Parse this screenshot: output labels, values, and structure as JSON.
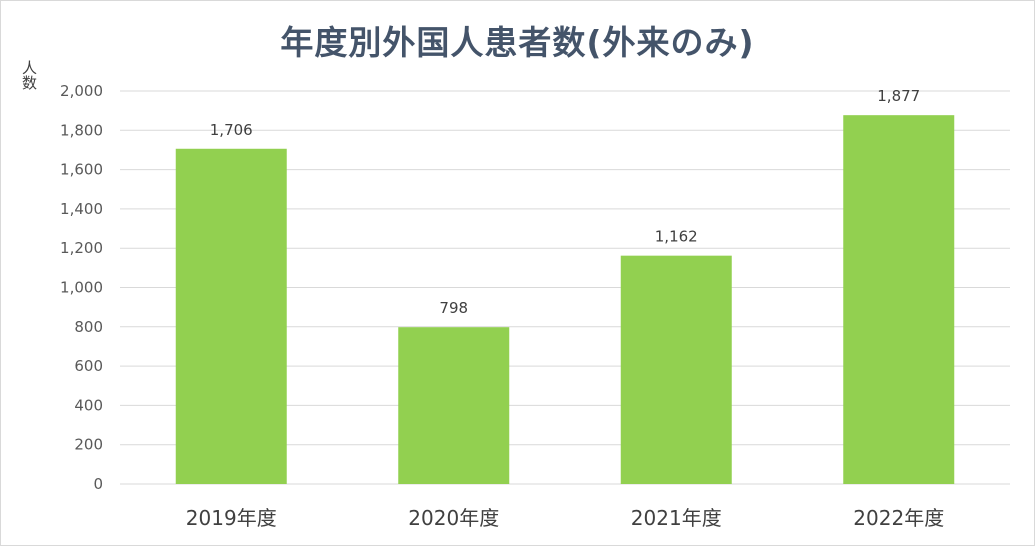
{
  "chart_data": {
    "type": "bar",
    "title": "年度別外国人患者数(外来のみ)",
    "xlabel": "",
    "ylabel": "人数",
    "categories": [
      "2019年度",
      "2020年度",
      "2021年度",
      "2022年度"
    ],
    "values": [
      1706,
      798,
      1162,
      1877
    ],
    "data_labels": [
      "1,706",
      "798",
      "1,162",
      "1,877"
    ],
    "ylim": [
      0,
      2000
    ],
    "yticks": [
      0,
      200,
      400,
      600,
      800,
      1000,
      1200,
      1400,
      1600,
      1800,
      2000
    ],
    "ytick_labels": [
      "0",
      "200",
      "400",
      "600",
      "800",
      "1,000",
      "1,200",
      "1,400",
      "1,600",
      "1,800",
      "2,000"
    ],
    "grid": true,
    "legend": "none",
    "colors": {
      "bar": "#92d050",
      "grid": "#d9d9d9",
      "title": "#44546a"
    }
  }
}
